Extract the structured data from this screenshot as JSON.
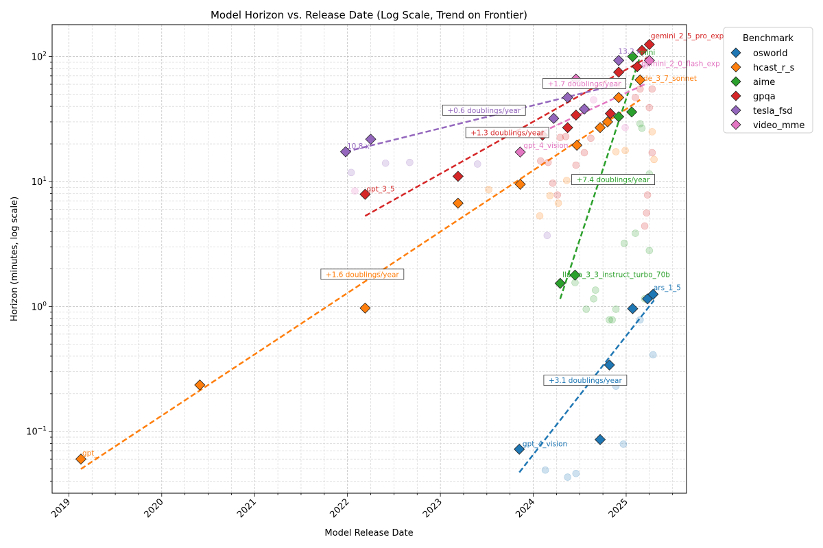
{
  "chart_data": {
    "type": "scatter",
    "title": "Model Horizon vs. Release Date (Log Scale, Trend on Frontier)",
    "xlabel": "Model Release Date",
    "ylabel": "Horizon (minutes, log scale)",
    "xlim": [
      2018.82,
      2025.65
    ],
    "ylim_log": [
      0.032,
      180
    ],
    "y_scale": "log",
    "grid": true,
    "x_ticks": [
      {
        "value": 2019,
        "label": "2019"
      },
      {
        "value": 2020,
        "label": "2020"
      },
      {
        "value": 2021,
        "label": "2021"
      },
      {
        "value": 2022,
        "label": "2022"
      },
      {
        "value": 2023,
        "label": "2023"
      },
      {
        "value": 2024,
        "label": "2024"
      },
      {
        "value": 2025,
        "label": "2025"
      }
    ],
    "y_ticks": [
      {
        "value": 0.1,
        "base": "10",
        "exp": "−1"
      },
      {
        "value": 1,
        "base": "10",
        "exp": "0"
      },
      {
        "value": 10,
        "base": "10",
        "exp": "1"
      },
      {
        "value": 100,
        "base": "10",
        "exp": "2"
      }
    ],
    "legend": {
      "title": "Benchmark",
      "position": "outside-top-right",
      "entries": [
        "osworld",
        "hcast_r_s",
        "aime",
        "gpqa",
        "tesla_fsd",
        "video_mme"
      ]
    },
    "series": [
      {
        "name": "osworld",
        "color": "#1f77b4",
        "frontier": [
          [
            2023.85,
            0.072
          ],
          [
            2024.72,
            0.086
          ],
          [
            2024.82,
            0.34
          ],
          [
            2025.07,
            0.96
          ],
          [
            2025.23,
            1.15
          ],
          [
            2025.29,
            1.25
          ]
        ],
        "others": [
          [
            2024.13,
            0.049
          ],
          [
            2024.37,
            0.043
          ],
          [
            2024.46,
            0.046
          ],
          [
            2024.89,
            0.23
          ],
          [
            2024.97,
            0.079
          ],
          [
            2025.15,
            0.78
          ],
          [
            2025.29,
            0.41
          ]
        ],
        "trend": {
          "x0": 2023.85,
          "x1": 2025.3,
          "y0": 0.047,
          "y1": 1.12,
          "label": "+3.1 doublings/year",
          "lx": 2024.56,
          "ly": 0.255
        },
        "labels": [
          {
            "text": "gpt_4_vision",
            "x": 2023.87,
            "y": 0.076
          },
          {
            "text": "ars_1_5",
            "x": 2025.28,
            "y": 1.35
          }
        ]
      },
      {
        "name": "hcast_r_s",
        "color": "#ff7f0e",
        "frontier": [
          [
            2019.13,
            0.06
          ],
          [
            2020.41,
            0.235
          ],
          [
            2022.19,
            0.97
          ],
          [
            2023.19,
            6.7
          ],
          [
            2023.86,
            9.5
          ],
          [
            2024.47,
            19.5
          ],
          [
            2024.72,
            27
          ],
          [
            2024.8,
            30
          ],
          [
            2024.92,
            47
          ],
          [
            2025.15,
            65
          ]
        ],
        "others": [
          [
            2023.52,
            8.6
          ],
          [
            2024.07,
            5.3
          ],
          [
            2024.18,
            7.7
          ],
          [
            2024.27,
            6.7
          ],
          [
            2024.36,
            10.2
          ],
          [
            2024.89,
            17.3
          ],
          [
            2024.99,
            17.7
          ],
          [
            2025.28,
            25
          ],
          [
            2025.3,
            15
          ]
        ],
        "trend": {
          "x0": 2019.13,
          "x1": 2025.15,
          "y0": 0.05,
          "y1": 45,
          "label": "+1.6 doublings/year",
          "lx": 2022.16,
          "ly": 1.8
        },
        "labels": [
          {
            "text": "gpt_",
            "x": 2019.13,
            "y": 0.064
          },
          {
            "text": "de_3_7_sonnet",
            "x": 2025.17,
            "y": 64
          }
        ]
      },
      {
        "name": "aime",
        "color": "#2ca02c",
        "frontier": [
          [
            2024.29,
            1.53
          ],
          [
            2024.45,
            1.78
          ],
          [
            2024.92,
            33
          ],
          [
            2025.06,
            36
          ],
          [
            2025.07,
            100
          ]
        ],
        "others": [
          [
            2024.45,
            1.55
          ],
          [
            2024.57,
            0.95
          ],
          [
            2024.65,
            1.15
          ],
          [
            2024.67,
            1.35
          ],
          [
            2024.82,
            0.78
          ],
          [
            2024.85,
            0.78
          ],
          [
            2024.89,
            0.95
          ],
          [
            2024.98,
            3.2
          ],
          [
            2025.1,
            3.85
          ],
          [
            2025.17,
            26.7
          ],
          [
            2025.2,
            1.15
          ],
          [
            2025.25,
            11.5
          ],
          [
            2025.25,
            2.8
          ],
          [
            2025.15,
            29
          ]
        ],
        "trend": {
          "x0": 2024.29,
          "x1": 2025.15,
          "y0": 1.15,
          "y1": 100,
          "label": "+7.4 doublings/year",
          "lx": 2024.86,
          "ly": 10.3
        },
        "labels": [
          {
            "text": "llama_3_3_instruct_turbo_70b",
            "x": 2024.3,
            "y": 1.72
          },
          {
            "text": "mini",
            "x": 2025.13,
            "y": 103
          }
        ]
      },
      {
        "name": "gpqa",
        "color": "#d62728",
        "frontier": [
          [
            2022.19,
            7.9
          ],
          [
            2023.19,
            11
          ],
          [
            2024.1,
            23.5
          ],
          [
            2024.37,
            27
          ],
          [
            2024.46,
            34
          ],
          [
            2024.83,
            35
          ],
          [
            2024.92,
            75
          ],
          [
            2025.12,
            83
          ],
          [
            2025.17,
            112
          ],
          [
            2025.25,
            125
          ]
        ],
        "others": [
          [
            2024.08,
            14.6
          ],
          [
            2024.16,
            14.2
          ],
          [
            2024.21,
            9.7
          ],
          [
            2024.26,
            7.8
          ],
          [
            2024.29,
            22.5
          ],
          [
            2024.35,
            22.9
          ],
          [
            2024.46,
            13.5
          ],
          [
            2024.55,
            17
          ],
          [
            2024.62,
            22.2
          ],
          [
            2024.92,
            60
          ],
          [
            2025.1,
            47
          ],
          [
            2025.15,
            55
          ],
          [
            2025.2,
            4.4
          ],
          [
            2025.22,
            5.6
          ],
          [
            2025.23,
            7.8
          ],
          [
            2025.25,
            39
          ],
          [
            2025.28,
            17
          ],
          [
            2025.28,
            55
          ]
        ],
        "trend": {
          "x0": 2022.19,
          "x1": 2025.25,
          "y0": 5.3,
          "y1": 100,
          "label": "+1.3 doublings/year",
          "lx": 2023.72,
          "ly": 24.5
        },
        "labels": [
          {
            "text": "gpt_3_5",
            "x": 2022.19,
            "y": 8.3
          },
          {
            "text": "gemini_2_5_pro_exp",
            "x": 2025.25,
            "y": 140
          }
        ]
      },
      {
        "name": "tesla_fsd",
        "color": "#9467bd",
        "frontier": [
          [
            2021.98,
            17.3
          ],
          [
            2022.25,
            21.8
          ],
          [
            2024.22,
            32
          ],
          [
            2024.37,
            47
          ],
          [
            2024.55,
            38
          ],
          [
            2024.92,
            93
          ]
        ],
        "others": [
          [
            2022.04,
            11.8
          ],
          [
            2022.41,
            14
          ],
          [
            2022.67,
            14.2
          ],
          [
            2023.4,
            13.8
          ],
          [
            2024.15,
            3.7
          ]
        ],
        "trend": {
          "x0": 2021.98,
          "x1": 2024.92,
          "y0": 17.3,
          "y1": 60,
          "label": "+0.6 doublings/year",
          "lx": 2023.47,
          "ly": 37
        },
        "labels": [
          {
            "text": "10.8 x",
            "x": 2021.98,
            "y": 18.3
          },
          {
            "text": "13.2 x",
            "x": 2024.9,
            "y": 105
          }
        ]
      },
      {
        "name": "video_mme",
        "color": "#e377c2",
        "frontier": [
          [
            2023.86,
            17.2
          ],
          [
            2024.46,
            66
          ],
          [
            2025.25,
            93
          ]
        ],
        "others": [
          [
            2022.08,
            8.4
          ],
          [
            2024.65,
            45
          ],
          [
            2024.99,
            27
          ],
          [
            2025.2,
            85
          ]
        ],
        "trend": {
          "x0": 2024.1,
          "x1": 2025.2,
          "y0": 25,
          "y1": 60,
          "label": "+1.7 doublings/year",
          "lx": 2024.55,
          "ly": 60.5
        },
        "labels": [
          {
            "text": "gpt_4_vision",
            "x": 2023.88,
            "y": 18.5
          },
          {
            "text": "gemini_2_0_flash_exp",
            "x": 2025.15,
            "y": 84
          }
        ]
      }
    ]
  }
}
